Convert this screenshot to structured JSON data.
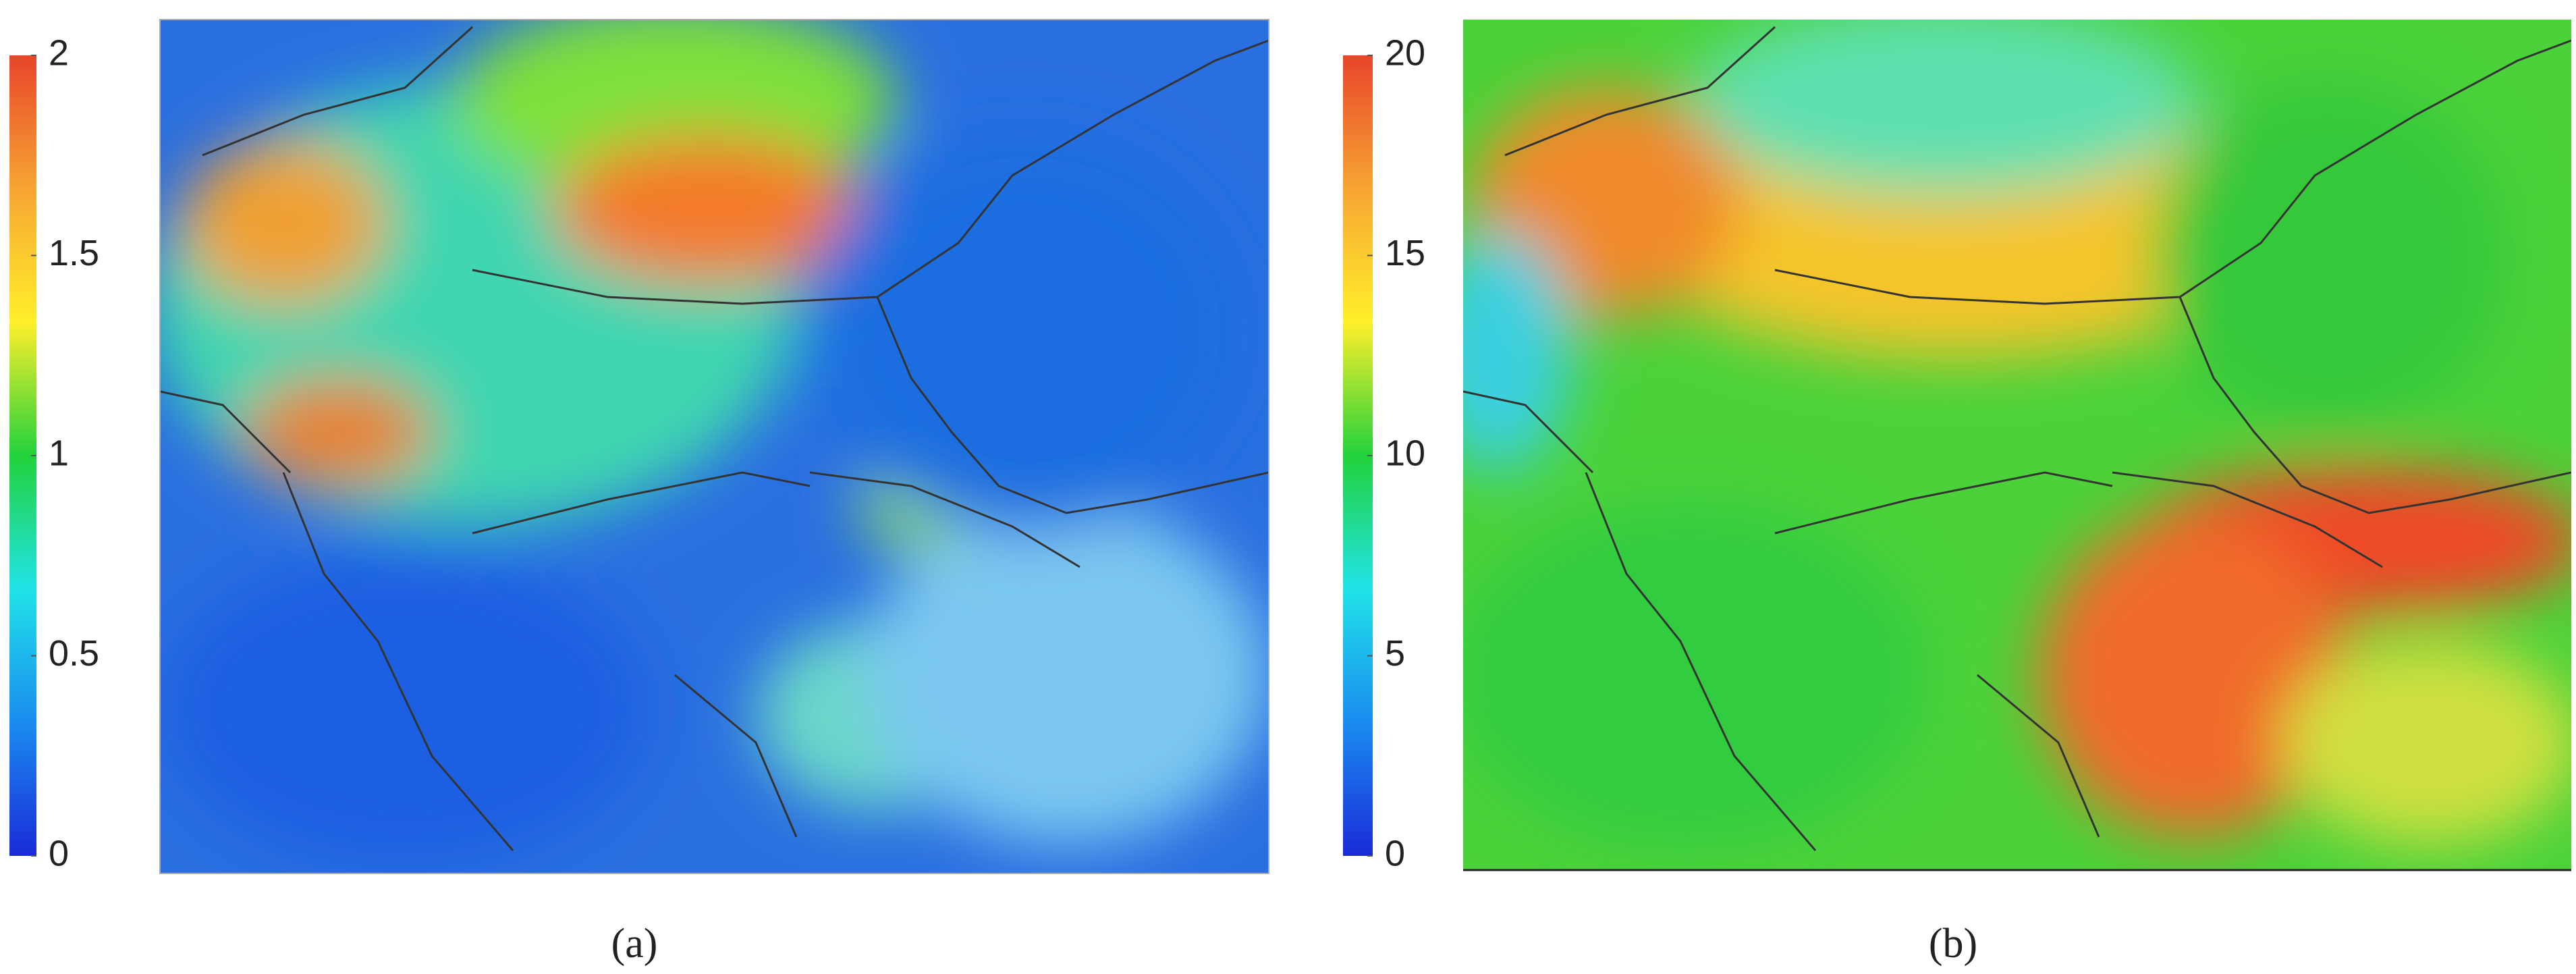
{
  "panels": [
    {
      "label": "(a)",
      "colorbar": {
        "lim": [
          0,
          2
        ],
        "ticks": [
          0,
          0.5,
          1,
          1.5,
          2
        ],
        "colors": [
          "#1a2bd8",
          "#1a8cf0",
          "#21e3e8",
          "#22d23a",
          "#ffef2a",
          "#f7a533",
          "#e8452a"
        ]
      }
    },
    {
      "label": "(b)",
      "colorbar": {
        "lim": [
          0,
          20
        ],
        "ticks": [
          0,
          5,
          10,
          15,
          20
        ],
        "colors": [
          "#1a2bd8",
          "#1a8cf0",
          "#21e3e8",
          "#22d23a",
          "#ffef2a",
          "#f7a533",
          "#e8452a"
        ]
      }
    }
  ]
}
